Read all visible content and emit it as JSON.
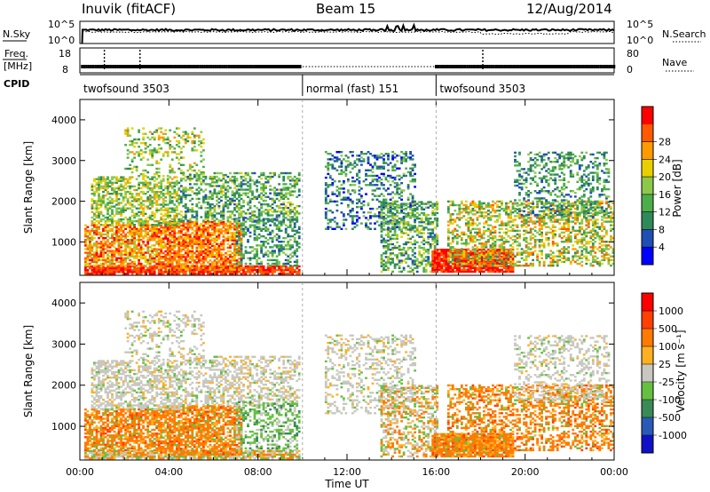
{
  "header": {
    "station": "Inuvik (fitACF)",
    "beam": "Beam 15",
    "date": "12/Aug/2014"
  },
  "colors": {
    "power_scale": [
      "#0000ff",
      "#1f4fb4",
      "#2f8a5a",
      "#4cae4a",
      "#8cc84a",
      "#e8d000",
      "#ff9a00",
      "#ff5a00",
      "#ff0000"
    ],
    "velocity_scale": [
      "#1010c8",
      "#2a5ab8",
      "#3a8a58",
      "#66c040",
      "#c8c8c0",
      "#ffb020",
      "#ff7a00",
      "#ff4000",
      "#ff0000"
    ],
    "ground_scatter": "#c8c8c0",
    "grid": "#888888"
  },
  "chart_data": [
    {
      "name": "noise-panel",
      "type": "line",
      "left_label": "N.Sky",
      "right_label": "N.Search",
      "left_ticks": [
        "10^5",
        "10^0"
      ],
      "right_ticks": [
        "10^5",
        "10^0"
      ],
      "y_scale": "log",
      "ylim": [
        1,
        100000
      ]
    },
    {
      "name": "freq-panel",
      "type": "line",
      "left_label": "Freq.",
      "left_unit": "[MHz]",
      "right_label": "Nave",
      "left_ticks": [
        18,
        8
      ],
      "right_ticks": [
        80,
        0
      ],
      "ylim_left": [
        8,
        18
      ],
      "ylim_right": [
        0,
        80
      ]
    },
    {
      "name": "cpid-panel",
      "type": "table",
      "label": "CPID",
      "segments": [
        {
          "start": 0,
          "end": 10,
          "name": "twofsound 3503"
        },
        {
          "start": 10,
          "end": 16,
          "name": "normal (fast) 151"
        },
        {
          "start": 16,
          "end": 24,
          "name": "twofsound 3503"
        }
      ]
    },
    {
      "name": "power-panel",
      "type": "heatmap",
      "ylabel": "Slant Range [km]",
      "x_ticks": [
        "00:00",
        "04:00",
        "08:00",
        "12:00",
        "16:00",
        "20:00",
        "00:00"
      ],
      "xlim": [
        0,
        24
      ],
      "y_ticks": [
        1000,
        2000,
        3000,
        4000
      ],
      "ylim": [
        180,
        4500
      ],
      "colorbar": {
        "label": "Power [dB]",
        "ticks": [
          4,
          8,
          12,
          16,
          20,
          24,
          28
        ],
        "range": [
          0,
          30
        ]
      }
    },
    {
      "name": "velocity-panel",
      "type": "heatmap",
      "ylabel": "Slant Range [km]",
      "xlabel": "Time UT",
      "x_ticks": [
        "00:00",
        "04:00",
        "08:00",
        "12:00",
        "16:00",
        "20:00",
        "00:00"
      ],
      "xlim": [
        0,
        24
      ],
      "y_ticks": [
        1000,
        2000,
        3000,
        4000
      ],
      "ylim": [
        180,
        4500
      ],
      "colorbar": {
        "label": "Velocity [m s⁻¹]",
        "ticks": [
          "1000",
          "500",
          "100",
          "25",
          "-25",
          "-100",
          "-500",
          "-1000"
        ]
      }
    }
  ]
}
